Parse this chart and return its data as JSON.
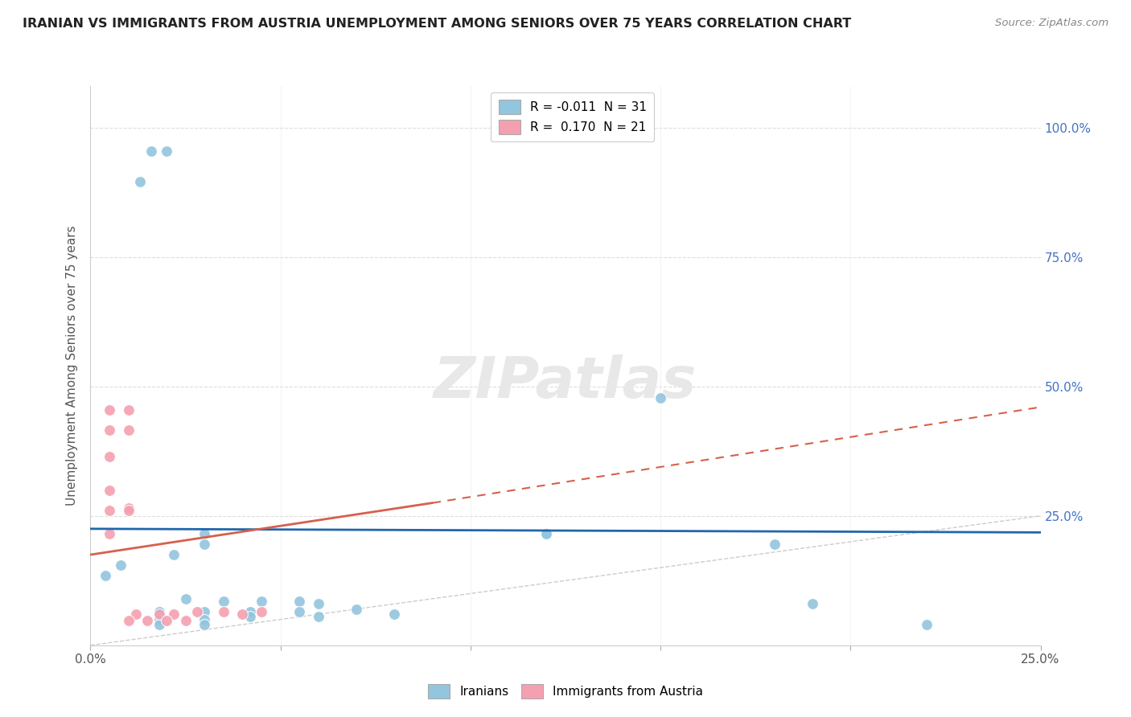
{
  "title": "IRANIAN VS IMMIGRANTS FROM AUSTRIA UNEMPLOYMENT AMONG SENIORS OVER 75 YEARS CORRELATION CHART",
  "source": "Source: ZipAtlas.com",
  "ylabel": "Unemployment Among Seniors over 75 years",
  "y_tick_labels": [
    "100.0%",
    "75.0%",
    "50.0%",
    "25.0%"
  ],
  "y_tick_values": [
    1.0,
    0.75,
    0.5,
    0.25
  ],
  "xlim": [
    0.0,
    0.25
  ],
  "ylim": [
    0.0,
    1.08
  ],
  "legend_R_entries": [
    {
      "label": "R = -0.011  N = 31",
      "color": "#92c5de"
    },
    {
      "label": "R =  0.170  N = 21",
      "color": "#f4a0b0"
    }
  ],
  "iranian_scatter": [
    [
      0.016,
      0.955
    ],
    [
      0.02,
      0.955
    ],
    [
      0.013,
      0.895
    ],
    [
      0.15,
      0.478
    ],
    [
      0.12,
      0.215
    ],
    [
      0.03,
      0.215
    ],
    [
      0.03,
      0.195
    ],
    [
      0.022,
      0.175
    ],
    [
      0.008,
      0.155
    ],
    [
      0.004,
      0.135
    ],
    [
      0.12,
      0.215
    ],
    [
      0.025,
      0.09
    ],
    [
      0.035,
      0.085
    ],
    [
      0.045,
      0.085
    ],
    [
      0.055,
      0.085
    ],
    [
      0.06,
      0.08
    ],
    [
      0.018,
      0.065
    ],
    [
      0.03,
      0.065
    ],
    [
      0.042,
      0.065
    ],
    [
      0.055,
      0.065
    ],
    [
      0.07,
      0.07
    ],
    [
      0.018,
      0.05
    ],
    [
      0.03,
      0.05
    ],
    [
      0.042,
      0.055
    ],
    [
      0.06,
      0.055
    ],
    [
      0.08,
      0.06
    ],
    [
      0.018,
      0.04
    ],
    [
      0.03,
      0.04
    ],
    [
      0.19,
      0.08
    ],
    [
      0.22,
      0.04
    ],
    [
      0.18,
      0.195
    ]
  ],
  "austrian_scatter": [
    [
      0.005,
      0.455
    ],
    [
      0.01,
      0.455
    ],
    [
      0.005,
      0.415
    ],
    [
      0.01,
      0.415
    ],
    [
      0.005,
      0.365
    ],
    [
      0.005,
      0.3
    ],
    [
      0.005,
      0.26
    ],
    [
      0.01,
      0.265
    ],
    [
      0.005,
      0.215
    ],
    [
      0.01,
      0.26
    ],
    [
      0.012,
      0.06
    ],
    [
      0.018,
      0.06
    ],
    [
      0.022,
      0.06
    ],
    [
      0.028,
      0.065
    ],
    [
      0.035,
      0.065
    ],
    [
      0.04,
      0.06
    ],
    [
      0.045,
      0.065
    ],
    [
      0.01,
      0.048
    ],
    [
      0.015,
      0.048
    ],
    [
      0.02,
      0.048
    ],
    [
      0.025,
      0.048
    ]
  ],
  "iranian_line": {
    "x": [
      0.0,
      0.25
    ],
    "y": [
      0.225,
      0.218
    ],
    "color": "#2166ac"
  },
  "austrian_line_solid": {
    "x": [
      0.0,
      0.09
    ],
    "y": [
      0.175,
      0.275
    ],
    "color": "#d6604d"
  },
  "austrian_line_dashed": {
    "x": [
      0.09,
      0.25
    ],
    "y": [
      0.275,
      0.46
    ],
    "color": "#d6604d"
  },
  "diagonal_line": {
    "x": [
      0.0,
      1.0
    ],
    "y": [
      0.0,
      1.0
    ],
    "color": "#cccccc"
  },
  "scatter_iranian_color": "#92c5de",
  "scatter_austrian_color": "#f4a0b0",
  "scatter_size": 100,
  "background_color": "#ffffff",
  "grid_color": "#dddddd",
  "watermark_text": "ZIPatlas",
  "watermark_color": "#e8e8e8"
}
